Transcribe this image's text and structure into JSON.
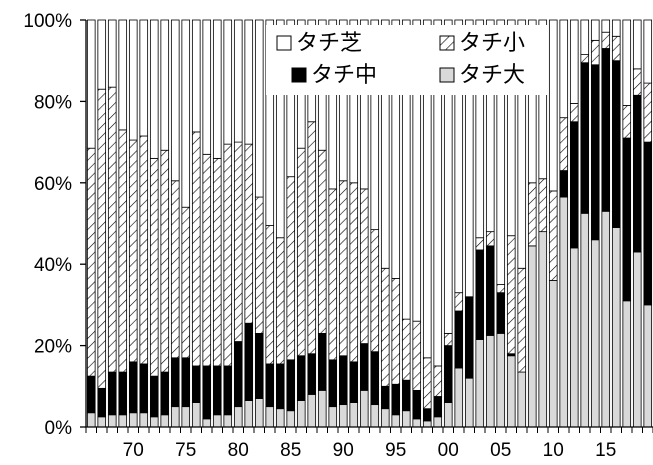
{
  "chart_data": {
    "type": "bar",
    "stacked": true,
    "percent": true,
    "xlim_years": [
      1966,
      2019
    ],
    "x_tick_labels": [
      "70",
      "75",
      "80",
      "85",
      "90",
      "95",
      "00",
      "05",
      "10",
      "15"
    ],
    "x_tick_years": [
      1970,
      1975,
      1980,
      1985,
      1990,
      1995,
      2000,
      2005,
      2010,
      2015
    ],
    "y_tick_labels": [
      "0%",
      "20%",
      "40%",
      "60%",
      "80%",
      "100%"
    ],
    "ylim": [
      0,
      100
    ],
    "legend": {
      "placement": "top-center",
      "entries": [
        {
          "label": "タチ芝",
          "key": "shiba"
        },
        {
          "label": "タチ小",
          "key": "ko"
        },
        {
          "label": "タチ中",
          "key": "chu"
        },
        {
          "label": "タチ大",
          "key": "dai"
        }
      ]
    },
    "colors": {
      "dai": "#d9d9d9",
      "chu": "#000000",
      "ko_hatch": "#000000",
      "shiba": "#ffffff",
      "outline": "#000000"
    },
    "categories": [
      "1966",
      "1967",
      "1968",
      "1969",
      "1970",
      "1971",
      "1972",
      "1973",
      "1974",
      "1975",
      "1976",
      "1977",
      "1978",
      "1979",
      "1980",
      "1981",
      "1982",
      "1983",
      "1984",
      "1985",
      "1986",
      "1987",
      "1988",
      "1989",
      "1990",
      "1991",
      "1992",
      "1993",
      "1994",
      "1995",
      "1996",
      "1997",
      "1998",
      "1999",
      "2000",
      "2001",
      "2002",
      "2003",
      "2004",
      "2005",
      "2006",
      "2007",
      "2008",
      "2009",
      "2010",
      "2011",
      "2012",
      "2013",
      "2014",
      "2015",
      "2016",
      "2017",
      "2018",
      "2019"
    ],
    "series": [
      {
        "name": "タチ大",
        "key": "dai",
        "values": [
          3.5,
          2.5,
          3,
          3,
          3.5,
          3.5,
          2.5,
          3,
          5,
          5,
          6,
          2,
          3,
          3,
          5,
          6.5,
          7,
          5,
          4.5,
          4,
          6.5,
          8,
          9,
          5,
          5.5,
          6,
          9,
          5.5,
          4.5,
          3,
          4,
          2,
          1.5,
          2.5,
          6,
          14.5,
          12,
          21.5,
          22.5,
          23,
          17.5,
          13.5,
          44.5,
          48,
          36,
          56.5,
          44,
          52.5,
          46,
          53,
          49,
          31,
          43,
          30
        ]
      },
      {
        "name": "タチ中",
        "key": "chu",
        "values": [
          9,
          7,
          10.5,
          10.5,
          12.5,
          12,
          10,
          10.5,
          12,
          12,
          9,
          13,
          12,
          12,
          16,
          19,
          16,
          10.5,
          11,
          12.5,
          11,
          10,
          14,
          11.5,
          12,
          10,
          11.5,
          13,
          5.5,
          7.5,
          7.5,
          7,
          3,
          5,
          14,
          14,
          20,
          22,
          22,
          10,
          0.5,
          0,
          0,
          0,
          0,
          6.5,
          31,
          37,
          43,
          40,
          41,
          40,
          38.5,
          40
        ]
      },
      {
        "name": "タチ小",
        "key": "ko",
        "values": [
          56,
          73.5,
          70,
          59.5,
          54.5,
          56,
          53.5,
          54.5,
          43.5,
          37,
          57.5,
          52,
          51,
          54.5,
          49,
          44,
          33.5,
          34,
          31,
          45,
          51,
          57,
          45,
          42,
          43,
          44,
          38,
          30,
          29,
          26,
          15,
          17,
          12.5,
          7.5,
          3,
          4.5,
          0,
          3,
          3.5,
          2,
          29,
          25.5,
          15.5,
          13,
          22,
          13,
          4.5,
          2,
          6,
          4,
          6,
          8,
          6.5,
          14.5
        ]
      },
      {
        "name": "タチ芝",
        "key": "shiba",
        "values": [
          31.5,
          17,
          16.5,
          27,
          29.5,
          28.5,
          34,
          32,
          39.5,
          46,
          27.5,
          33,
          34,
          30.5,
          30,
          30.5,
          43.5,
          50.5,
          53.5,
          38.5,
          31.5,
          25,
          32,
          41.5,
          39.5,
          40,
          41.5,
          51.5,
          61,
          63.5,
          73.5,
          74,
          83,
          85,
          77,
          67,
          68,
          53.5,
          52,
          65,
          53,
          61,
          40,
          39,
          42,
          24,
          20.5,
          8.5,
          5,
          3,
          4,
          21,
          12,
          15.5
        ]
      }
    ]
  }
}
